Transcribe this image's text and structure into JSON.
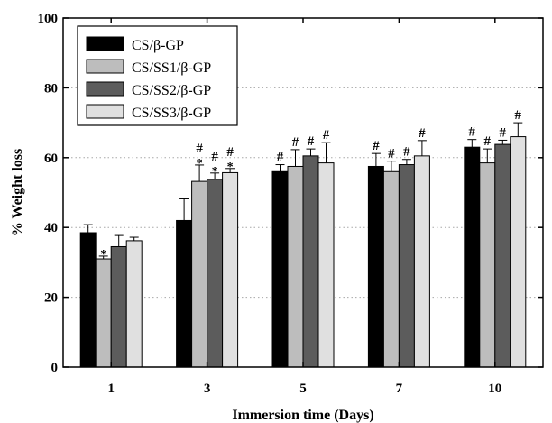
{
  "chart_data": {
    "type": "bar",
    "title": "",
    "xlabel": "Immersion time (Days)",
    "ylabel": "% Weight loss",
    "categories": [
      "1",
      "3",
      "5",
      "7",
      "10"
    ],
    "ylim": [
      0,
      100
    ],
    "yticks": [
      "0",
      "20",
      "40",
      "60",
      "80",
      "100"
    ],
    "grid": "horizontal dotted lines at 20, 40, 60, 80",
    "legend_position": "top-left",
    "series": [
      {
        "name": "CS/β-GP",
        "color": "#000000",
        "values": [
          38.5,
          42,
          56,
          57.5,
          63
        ],
        "errors": [
          2.3,
          6.2,
          2.0,
          3.7,
          2.2
        ],
        "marks": [
          "",
          "",
          "#",
          "#",
          "#"
        ]
      },
      {
        "name": "CS/SS1/β-GP",
        "color": "#bdbdbd",
        "values": [
          31,
          53.2,
          57.5,
          56,
          58.5
        ],
        "errors": [
          0.8,
          4.7,
          4.8,
          3.0,
          4.0
        ],
        "marks": [
          "*",
          "#*",
          "#",
          "#",
          "#"
        ]
      },
      {
        "name": "CS/SS2/β-GP",
        "color": "#5c5c5c",
        "values": [
          34.5,
          53.8,
          60.5,
          58,
          63.8
        ],
        "errors": [
          3.2,
          1.8,
          2.0,
          1.5,
          1.2
        ],
        "marks": [
          "",
          "#*",
          "#",
          "#",
          "#"
        ]
      },
      {
        "name": "CS/SS3/β-GP",
        "color": "#e0e0e0",
        "values": [
          36.2,
          55.7,
          58.5,
          60.5,
          66
        ],
        "errors": [
          1.0,
          1.2,
          5.8,
          4.4,
          4.0
        ],
        "marks": [
          "",
          "#*",
          "#",
          "#",
          "#"
        ]
      }
    ]
  }
}
